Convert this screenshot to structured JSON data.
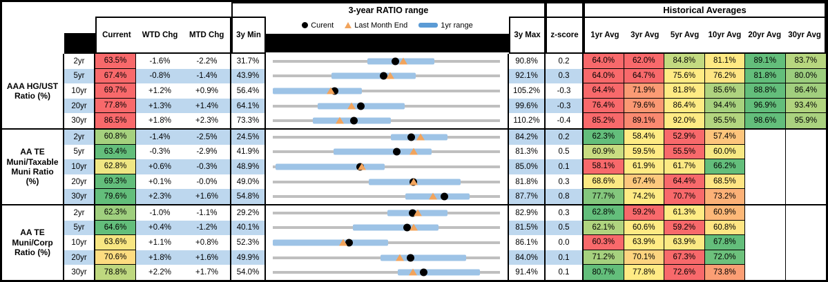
{
  "header": {
    "range_title": "3-year RATIO range",
    "hist_title": "Historical Averages",
    "col_current": "Current",
    "col_wtd": "WTD Chg",
    "col_mtd": "MTD Chg",
    "col_3ymin": "3y Min",
    "col_3ymax": "3y Max",
    "col_zscore": "z-score",
    "avg_cols": [
      "1yr Avg",
      "3yr Avg",
      "5yr Avg",
      "10yr Avg",
      "20yr Avg",
      "30yr Avg"
    ],
    "legend": {
      "current": "Curent",
      "last_month": "Last Month End",
      "range": "1yr range"
    }
  },
  "colors": {
    "stripe_blue": "#BDD7EE",
    "bar_blue": "#9DC3E6",
    "track_gray": "#BFBFBF",
    "marker_dot": "#000000",
    "marker_triangle": "#F2A45C",
    "legend_swatch": "#5B9BD5",
    "scale_red": "#F8696B",
    "scale_yellow": "#FFEB84",
    "scale_green": "#63BE7B"
  },
  "groups": [
    {
      "label": "AAA HG/UST\nRatio (%)",
      "rows": [
        {
          "tenor": "2yr",
          "current": "63.5%",
          "current_bg": "#F8696B",
          "wtd": "-1.6%",
          "mtd": "-2.2%",
          "min": "31.7%",
          "max": "90.8%",
          "z": "0.2",
          "range": {
            "axis_min": 31.7,
            "axis_max": 90.8,
            "current": 63.5,
            "last_month_end": 65.7,
            "yr_low": 56.3,
            "yr_high": 73.7
          },
          "avgs": [
            {
              "text": "64.0%",
              "bg": "#F8696B"
            },
            {
              "text": "62.0%",
              "bg": "#F8696B"
            },
            {
              "text": "84.8%",
              "bg": "#C3DA80"
            },
            {
              "text": "81.1%",
              "bg": "#FFE983"
            },
            {
              "text": "89.1%",
              "bg": "#63BE7B"
            },
            {
              "text": "83.7%",
              "bg": "#B7D67F"
            }
          ]
        },
        {
          "tenor": "5yr",
          "current": "67.4%",
          "current_bg": "#F8696B",
          "wtd": "-0.8%",
          "mtd": "-1.4%",
          "min": "43.9%",
          "max": "92.1%",
          "z": "0.3",
          "range": {
            "axis_min": 43.9,
            "axis_max": 92.1,
            "current": 67.4,
            "last_month_end": 68.8,
            "yr_low": 56.3,
            "yr_high": 74.2
          },
          "avgs": [
            {
              "text": "64.0%",
              "bg": "#F8696B"
            },
            {
              "text": "64.7%",
              "bg": "#F8696B"
            },
            {
              "text": "75.6%",
              "bg": "#FFEB84"
            },
            {
              "text": "76.2%",
              "bg": "#FEE583"
            },
            {
              "text": "81.8%",
              "bg": "#63BE7B"
            },
            {
              "text": "80.0%",
              "bg": "#9CCE7E"
            }
          ]
        },
        {
          "tenor": "10yr",
          "current": "69.7%",
          "current_bg": "#F8696B",
          "wtd": "+1.2%",
          "mtd": "+0.9%",
          "min": "56.4%",
          "max": "105.2%",
          "z": "-0.3",
          "range": {
            "axis_min": 56.4,
            "axis_max": 105.2,
            "current": 69.7,
            "last_month_end": 68.8,
            "yr_low": 56.4,
            "yr_high": 75.6
          },
          "avgs": [
            {
              "text": "64.4%",
              "bg": "#F8696B"
            },
            {
              "text": "71.9%",
              "bg": "#FB9B74"
            },
            {
              "text": "81.8%",
              "bg": "#FFEB84"
            },
            {
              "text": "85.6%",
              "bg": "#AED37F"
            },
            {
              "text": "88.8%",
              "bg": "#63BE7B"
            },
            {
              "text": "86.4%",
              "bg": "#A1CF7E"
            }
          ]
        },
        {
          "tenor": "20yr",
          "current": "77.8%",
          "current_bg": "#F8696B",
          "wtd": "+1.3%",
          "mtd": "+1.4%",
          "min": "64.1%",
          "max": "99.6%",
          "z": "-0.3",
          "range": {
            "axis_min": 64.1,
            "axis_max": 99.6,
            "current": 77.8,
            "last_month_end": 76.4,
            "yr_low": 71.1,
            "yr_high": 84.7
          },
          "avgs": [
            {
              "text": "76.4%",
              "bg": "#F8696B"
            },
            {
              "text": "79.6%",
              "bg": "#FB9873"
            },
            {
              "text": "86.4%",
              "bg": "#FFEB84"
            },
            {
              "text": "94.4%",
              "bg": "#A7D17E"
            },
            {
              "text": "96.9%",
              "bg": "#63BE7B"
            },
            {
              "text": "93.4%",
              "bg": "#B1D47F"
            }
          ]
        },
        {
          "tenor": "30yr",
          "current": "86.5%",
          "current_bg": "#F8696B",
          "wtd": "+1.8%",
          "mtd": "+2.3%",
          "min": "73.3%",
          "max": "110.2%",
          "z": "-0.4",
          "range": {
            "axis_min": 73.3,
            "axis_max": 110.2,
            "current": 86.5,
            "last_month_end": 84.2,
            "yr_low": 79.8,
            "yr_high": 92.5
          },
          "avgs": [
            {
              "text": "85.2%",
              "bg": "#F8696B"
            },
            {
              "text": "89.1%",
              "bg": "#FA8970"
            },
            {
              "text": "92.0%",
              "bg": "#FFEB84"
            },
            {
              "text": "95.5%",
              "bg": "#B3D57F"
            },
            {
              "text": "98.6%",
              "bg": "#63BE7B"
            },
            {
              "text": "95.9%",
              "bg": "#AAD27F"
            }
          ]
        }
      ]
    },
    {
      "label": "AA TE\nMuni/Taxable\nMuni Ratio\n(%)",
      "rows": [
        {
          "tenor": "2yr",
          "current": "60.8%",
          "current_bg": "#A5D17E",
          "wtd": "-1.4%",
          "mtd": "-2.5%",
          "min": "24.5%",
          "max": "84.2%",
          "z": "0.2",
          "range": {
            "axis_min": 24.5,
            "axis_max": 84.2,
            "current": 60.8,
            "last_month_end": 63.3,
            "yr_low": 55.5,
            "yr_high": 70.5
          },
          "avgs": [
            {
              "text": "62.3%",
              "bg": "#63BE7B"
            },
            {
              "text": "58.4%",
              "bg": "#FFEB84"
            },
            {
              "text": "52.9%",
              "bg": "#F8696B"
            },
            {
              "text": "57.4%",
              "bg": "#FDC57C"
            },
            {
              "text": "",
              "bg": "#FFFFFF"
            },
            {
              "text": "",
              "bg": "#FFFFFF"
            }
          ]
        },
        {
          "tenor": "5yr",
          "current": "63.4%",
          "current_bg": "#63BE7B",
          "wtd": "-0.3%",
          "mtd": "-2.9%",
          "min": "41.9%",
          "max": "81.3%",
          "z": "0.5",
          "range": {
            "axis_min": 41.9,
            "axis_max": 81.3,
            "current": 63.4,
            "last_month_end": 66.3,
            "yr_low": 52.4,
            "yr_high": 69.5
          },
          "avgs": [
            {
              "text": "60.9%",
              "bg": "#C9DC81"
            },
            {
              "text": "59.5%",
              "bg": "#FFEB84"
            },
            {
              "text": "55.5%",
              "bg": "#F8696B"
            },
            {
              "text": "60.0%",
              "bg": "#F7E883"
            },
            {
              "text": "",
              "bg": "#FFFFFF"
            },
            {
              "text": "",
              "bg": "#FFFFFF"
            }
          ]
        },
        {
          "tenor": "10yr",
          "current": "62.8%",
          "current_bg": "#EFE683",
          "wtd": "+0.6%",
          "mtd": "-0.3%",
          "min": "48.9%",
          "max": "85.0%",
          "z": "0.1",
          "range": {
            "axis_min": 48.9,
            "axis_max": 85.0,
            "current": 62.8,
            "last_month_end": 63.1,
            "yr_low": 49.3,
            "yr_high": 66.7
          },
          "avgs": [
            {
              "text": "58.1%",
              "bg": "#F8696B"
            },
            {
              "text": "61.9%",
              "bg": "#FFEB84"
            },
            {
              "text": "61.7%",
              "bg": "#FCE983"
            },
            {
              "text": "66.2%",
              "bg": "#63BE7B"
            },
            {
              "text": "",
              "bg": "#FFFFFF"
            },
            {
              "text": "",
              "bg": "#FFFFFF"
            }
          ]
        },
        {
          "tenor": "20yr",
          "current": "69.3%",
          "current_bg": "#63BE7B",
          "wtd": "+0.1%",
          "mtd": "-0.0%",
          "min": "49.0%",
          "max": "81.8%",
          "z": "0.3",
          "range": {
            "axis_min": 49.0,
            "axis_max": 81.8,
            "current": 69.3,
            "last_month_end": 69.3,
            "yr_low": 62.9,
            "yr_high": 76.1
          },
          "avgs": [
            {
              "text": "68.6%",
              "bg": "#FCE983"
            },
            {
              "text": "67.4%",
              "bg": "#FDC87D"
            },
            {
              "text": "64.4%",
              "bg": "#F8696B"
            },
            {
              "text": "68.5%",
              "bg": "#FEE583"
            },
            {
              "text": "",
              "bg": "#FFFFFF"
            },
            {
              "text": "",
              "bg": "#FFFFFF"
            }
          ]
        },
        {
          "tenor": "30yr",
          "current": "79.6%",
          "current_bg": "#63BE7B",
          "wtd": "+2.3%",
          "mtd": "+1.6%",
          "min": "54.8%",
          "max": "87.7%",
          "z": "0.8",
          "range": {
            "axis_min": 54.8,
            "axis_max": 87.7,
            "current": 79.6,
            "last_month_end": 78.0,
            "yr_low": 74.0,
            "yr_high": 83.3
          },
          "avgs": [
            {
              "text": "77.7%",
              "bg": "#84C77D"
            },
            {
              "text": "74.2%",
              "bg": "#FFEB84"
            },
            {
              "text": "70.7%",
              "bg": "#F8696B"
            },
            {
              "text": "73.2%",
              "bg": "#FCB177"
            },
            {
              "text": "",
              "bg": "#FFFFFF"
            },
            {
              "text": "",
              "bg": "#FFFFFF"
            }
          ]
        }
      ]
    },
    {
      "label": "AA TE\nMuni/Corp\nRatio (%)",
      "rows": [
        {
          "tenor": "2yr",
          "current": "62.3%",
          "current_bg": "#9FCF7E",
          "wtd": "-1.0%",
          "mtd": "-1.1%",
          "min": "29.2%",
          "max": "82.9%",
          "z": "0.3",
          "range": {
            "axis_min": 29.2,
            "axis_max": 82.9,
            "current": 62.3,
            "last_month_end": 63.4,
            "yr_low": 56.3,
            "yr_high": 70.5
          },
          "avgs": [
            {
              "text": "62.8%",
              "bg": "#63BE7B"
            },
            {
              "text": "59.2%",
              "bg": "#F8696B"
            },
            {
              "text": "61.3%",
              "bg": "#FFEB84"
            },
            {
              "text": "60.9%",
              "bg": "#FCB878"
            },
            {
              "text": "",
              "bg": "#FFFFFF"
            },
            {
              "text": "",
              "bg": "#FFFFFF"
            }
          ]
        },
        {
          "tenor": "5yr",
          "current": "64.6%",
          "current_bg": "#63BE7B",
          "wtd": "+0.4%",
          "mtd": "-1.2%",
          "min": "40.1%",
          "max": "81.5%",
          "z": "0.5",
          "range": {
            "axis_min": 40.1,
            "axis_max": 81.5,
            "current": 64.6,
            "last_month_end": 65.8,
            "yr_low": 54.7,
            "yr_high": 70.3
          },
          "avgs": [
            {
              "text": "62.1%",
              "bg": "#B0D47F"
            },
            {
              "text": "60.6%",
              "bg": "#FFEB84"
            },
            {
              "text": "59.2%",
              "bg": "#F8696B"
            },
            {
              "text": "60.8%",
              "bg": "#FEE583"
            },
            {
              "text": "",
              "bg": "#FFFFFF"
            },
            {
              "text": "",
              "bg": "#FFFFFF"
            }
          ]
        },
        {
          "tenor": "10yr",
          "current": "63.6%",
          "current_bg": "#F8E682",
          "wtd": "+1.1%",
          "mtd": "+0.8%",
          "min": "52.3%",
          "max": "86.1%",
          "z": "0.0",
          "range": {
            "axis_min": 52.3,
            "axis_max": 86.1,
            "current": 63.6,
            "last_month_end": 62.8,
            "yr_low": 52.3,
            "yr_high": 69.5
          },
          "avgs": [
            {
              "text": "60.3%",
              "bg": "#F8696B"
            },
            {
              "text": "63.9%",
              "bg": "#FFEB84"
            },
            {
              "text": "63.9%",
              "bg": "#FBE983"
            },
            {
              "text": "67.8%",
              "bg": "#63BE7B"
            },
            {
              "text": "",
              "bg": "#FFFFFF"
            },
            {
              "text": "",
              "bg": "#FFFFFF"
            }
          ]
        },
        {
          "tenor": "20yr",
          "current": "70.6%",
          "current_bg": "#FDDC80",
          "wtd": "+1.8%",
          "mtd": "+1.6%",
          "min": "49.9%",
          "max": "84.0%",
          "z": "0.1",
          "range": {
            "axis_min": 49.9,
            "axis_max": 84.0,
            "current": 70.6,
            "last_month_end": 69.0,
            "yr_low": 66.1,
            "yr_high": 78.9
          },
          "avgs": [
            {
              "text": "71.2%",
              "bg": "#A6D17E"
            },
            {
              "text": "70.1%",
              "bg": "#FDD47F"
            },
            {
              "text": "67.3%",
              "bg": "#F8696B"
            },
            {
              "text": "72.0%",
              "bg": "#6DC17C"
            },
            {
              "text": "",
              "bg": "#FFFFFF"
            },
            {
              "text": "",
              "bg": "#FFFFFF"
            }
          ]
        },
        {
          "tenor": "30yr",
          "current": "78.8%",
          "current_bg": "#BED87F",
          "wtd": "+2.2%",
          "mtd": "+1.7%",
          "min": "54.0%",
          "max": "91.4%",
          "z": "0.1",
          "range": {
            "axis_min": 54.0,
            "axis_max": 91.4,
            "current": 78.8,
            "last_month_end": 77.1,
            "yr_low": 74.6,
            "yr_high": 88.1
          },
          "avgs": [
            {
              "text": "80.7%",
              "bg": "#63BE7B"
            },
            {
              "text": "77.8%",
              "bg": "#FFEB84"
            },
            {
              "text": "72.6%",
              "bg": "#F8696B"
            },
            {
              "text": "73.8%",
              "bg": "#FB9E74"
            },
            {
              "text": "",
              "bg": "#FFFFFF"
            },
            {
              "text": "",
              "bg": "#FFFFFF"
            }
          ]
        }
      ]
    }
  ]
}
